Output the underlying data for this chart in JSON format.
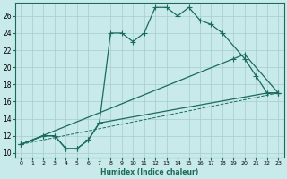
{
  "bg_color": "#c8eaea",
  "grid_color": "#a8cccc",
  "line_color": "#1a6b5a",
  "xlabel": "Humidex (Indice chaleur)",
  "xlim": [
    -0.5,
    23.5
  ],
  "ylim": [
    9.5,
    27.5
  ],
  "xticks": [
    0,
    1,
    2,
    3,
    4,
    5,
    6,
    7,
    8,
    9,
    10,
    11,
    12,
    13,
    14,
    15,
    16,
    17,
    18,
    19,
    20,
    21,
    22,
    23
  ],
  "yticks": [
    10,
    12,
    14,
    16,
    18,
    20,
    22,
    24,
    26
  ],
  "line1_x": [
    0,
    2,
    3,
    4,
    5,
    6,
    7,
    8,
    9,
    10,
    11,
    12,
    13,
    14,
    15,
    16,
    17,
    18,
    20,
    21,
    22,
    23
  ],
  "line1_y": [
    11,
    12,
    12,
    10.5,
    10.5,
    11.5,
    13.5,
    24,
    24,
    23,
    24,
    27,
    27,
    26,
    27,
    25.5,
    25,
    24,
    21,
    19,
    17,
    17
  ],
  "line2_x": [
    0,
    2,
    3,
    4,
    5,
    6,
    7,
    22,
    23
  ],
  "line2_y": [
    11,
    12,
    12,
    10.5,
    10.5,
    11.5,
    13.5,
    17,
    17
  ],
  "line3_x": [
    0,
    19,
    20,
    23
  ],
  "line3_y": [
    11,
    21,
    21.5,
    17
  ],
  "line4_x": [
    0,
    23
  ],
  "line4_y": [
    11,
    17
  ]
}
